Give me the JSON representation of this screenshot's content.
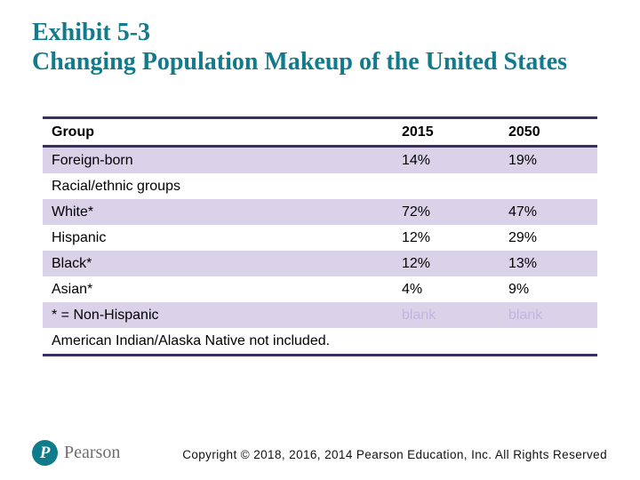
{
  "title": {
    "line1": "Exhibit 5-3",
    "line2": "Changing Population Makeup of the United States"
  },
  "table": {
    "columns": [
      "Group",
      "2015",
      "2050"
    ],
    "rows": [
      {
        "label": "Foreign-born",
        "v2015": "14%",
        "v2050": "19%",
        "shaded": true,
        "muted": false
      },
      {
        "label": "Racial/ethnic groups",
        "v2015": "",
        "v2050": "",
        "shaded": false,
        "muted": false
      },
      {
        "label": "White*",
        "v2015": "72%",
        "v2050": "47%",
        "shaded": true,
        "muted": false
      },
      {
        "label": "Hispanic",
        "v2015": "12%",
        "v2050": "29%",
        "shaded": false,
        "muted": false
      },
      {
        "label": "Black*",
        "v2015": "12%",
        "v2050": "13%",
        "shaded": true,
        "muted": false
      },
      {
        "label": "Asian*",
        "v2015": "4%",
        "v2050": "9%",
        "shaded": false,
        "muted": false
      },
      {
        "label": "* = Non-Hispanic",
        "v2015": "blank",
        "v2050": "blank",
        "shaded": true,
        "muted": true
      },
      {
        "label": "American Indian/Alaska Native not included.",
        "v2015": "",
        "v2050": "",
        "shaded": false,
        "muted": false
      }
    ]
  },
  "footer": {
    "logo_initial": "P",
    "logo_text": "Pearson",
    "copyright": "Copyright © 2018, 2016, 2014 Pearson Education, Inc. All Rights Reserved"
  },
  "colors": {
    "title_accent": "#137A8B",
    "border_purple": "#3A2D60",
    "row_lavender": "#D9D2E9",
    "muted_value": "#C4B5E0",
    "logo_teal": "#0F7C8C",
    "wordmark_gray": "#6E6E72"
  }
}
